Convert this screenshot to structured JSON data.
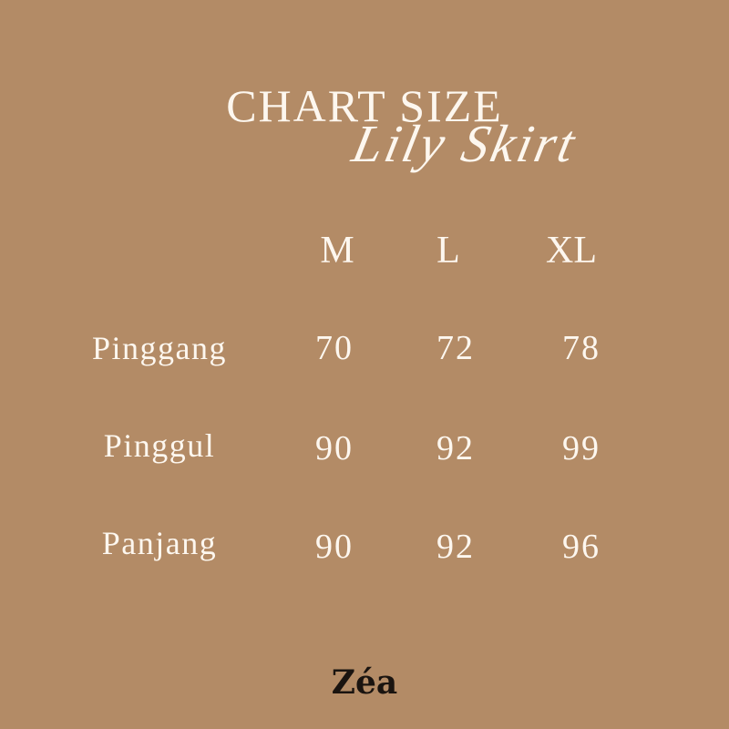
{
  "header": {
    "title": "CHART SIZE",
    "subtitle": "Lily Skirt"
  },
  "table": {
    "columns": [
      "M",
      "L",
      "XL"
    ],
    "rows": [
      {
        "label": "Pinggang",
        "values": [
          "70",
          "72",
          "78"
        ]
      },
      {
        "label": "Pinggul",
        "values": [
          "90",
          "92",
          "99"
        ]
      },
      {
        "label": "Panjang",
        "values": [
          "90",
          "92",
          "96"
        ]
      }
    ]
  },
  "brand": {
    "logo": "Zéa"
  },
  "colors": {
    "background": "#b38b66",
    "text": "#fdf7ef",
    "logo": "#1a1410"
  }
}
